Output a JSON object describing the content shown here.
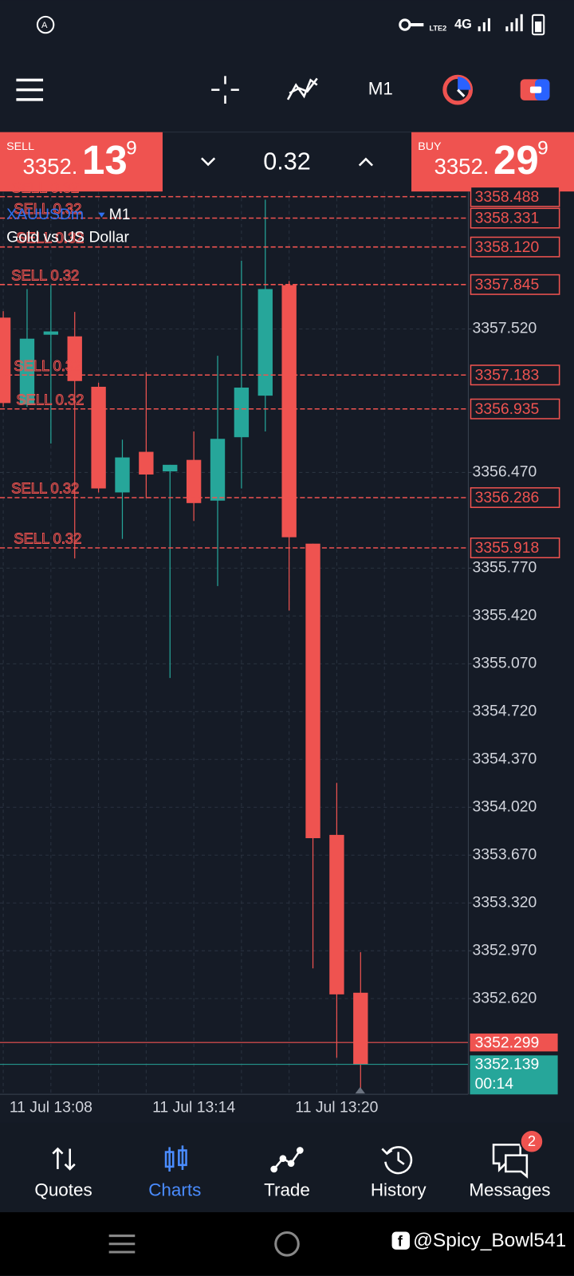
{
  "status_bar": {
    "lte": "LTE2",
    "network": "4G"
  },
  "toolbar": {
    "timeframe": "M1"
  },
  "quote": {
    "sell_label": "SELL",
    "sell_big": "3352.",
    "sell_main": "13",
    "sell_sup": "9",
    "volume": "0.32",
    "buy_label": "BUY",
    "buy_big": "3352.",
    "buy_main": "29",
    "buy_sup": "9"
  },
  "chart_data": {
    "type": "candlestick",
    "symbol": "XAUUSDm",
    "timeframe": "M1",
    "description": "Gold vs US Dollar",
    "categories": [
      null,
      null,
      "11 Jul 13:08",
      null,
      null,
      null,
      null,
      null,
      "11 Jul 13:14",
      null,
      null,
      null,
      null,
      null,
      "11 Jul 13:20",
      null
    ],
    "open": [
      3357.603,
      3356.966,
      3357.478,
      3357.466,
      3357.097,
      3356.324,
      3356.621,
      3356.478,
      3356.562,
      3356.264,
      3356.728,
      3357.032,
      3357.841,
      3355.949,
      3353.818,
      3352.663
    ],
    "high": [
      3357.65,
      3357.812,
      3357.841,
      3357.645,
      3357.127,
      3356.71,
      3357.205,
      3356.526,
      3356.77,
      3357.324,
      3358.02,
      3358.466,
      3357.871,
      3355.949,
      3354.199,
      3352.96
    ],
    "low": [
      3356.95,
      3356.95,
      3356.681,
      3355.841,
      3356.324,
      3355.984,
      3356.282,
      3354.966,
      3356.115,
      3355.639,
      3356.353,
      3356.77,
      3355.46,
      3352.841,
      3352.187,
      3351.949
    ],
    "close": [
      3356.978,
      3357.449,
      3357.502,
      3357.139,
      3356.353,
      3356.58,
      3356.455,
      3356.526,
      3356.246,
      3356.716,
      3357.091,
      3357.812,
      3355.996,
      3353.794,
      3352.651,
      3352.139
    ],
    "up_color": "#26a69a",
    "down_color": "#ef5350",
    "ylim": [
      3351.92,
      3358.526
    ],
    "yticks": [
      {
        "value": 3357.52,
        "label": "3357.520"
      },
      {
        "value": 3356.47,
        "label": "3356.470"
      },
      {
        "value": 3355.77,
        "label": "3355.770"
      },
      {
        "value": 3355.42,
        "label": "3355.420"
      },
      {
        "value": 3355.07,
        "label": "3355.070"
      },
      {
        "value": 3354.72,
        "label": "3354.720"
      },
      {
        "value": 3354.37,
        "label": "3354.370"
      },
      {
        "value": 3354.02,
        "label": "3354.020"
      },
      {
        "value": 3353.67,
        "label": "3353.670"
      },
      {
        "value": 3353.32,
        "label": "3353.320"
      },
      {
        "value": 3352.97,
        "label": "3352.970"
      },
      {
        "value": 3352.62,
        "label": "3352.620"
      }
    ],
    "grid": true,
    "orders": [
      {
        "label": "SELL 0.32",
        "price": {
          "value": 3358.488,
          "label": "3358.488"
        }
      },
      {
        "label": "SELL 0.32",
        "price": {
          "value": 3358.331,
          "label": "3358.331"
        }
      },
      {
        "label": "SELL 0.32",
        "price": {
          "value": 3358.12,
          "label": "3358.120"
        }
      },
      {
        "label": "SELL 0.32",
        "price": {
          "value": 3357.845,
          "label": "3357.845"
        }
      },
      {
        "label": "SELL 0.32",
        "price": {
          "value": 3357.183,
          "label": "3357.183"
        }
      },
      {
        "label": "SELL 0.32",
        "price": {
          "value": 3356.935,
          "label": "3356.935"
        }
      },
      {
        "label": "SELL 0.32",
        "price": {
          "value": 3356.286,
          "label": "3356.286"
        }
      },
      {
        "label": "SELL 0.32",
        "price": {
          "value": 3355.918,
          "label": "3355.918"
        }
      }
    ],
    "order_color": "#ef5350",
    "ask": {
      "value": 3352.299,
      "label": "3352.299"
    },
    "bid": {
      "value": 3352.139,
      "label": "3352.139"
    },
    "countdown": "00:14"
  },
  "nav": {
    "items": [
      "Quotes",
      "Charts",
      "Trade",
      "History",
      "Messages"
    ],
    "active": 1,
    "badge": 2
  },
  "watermark": "@Spicy_Bowl541"
}
